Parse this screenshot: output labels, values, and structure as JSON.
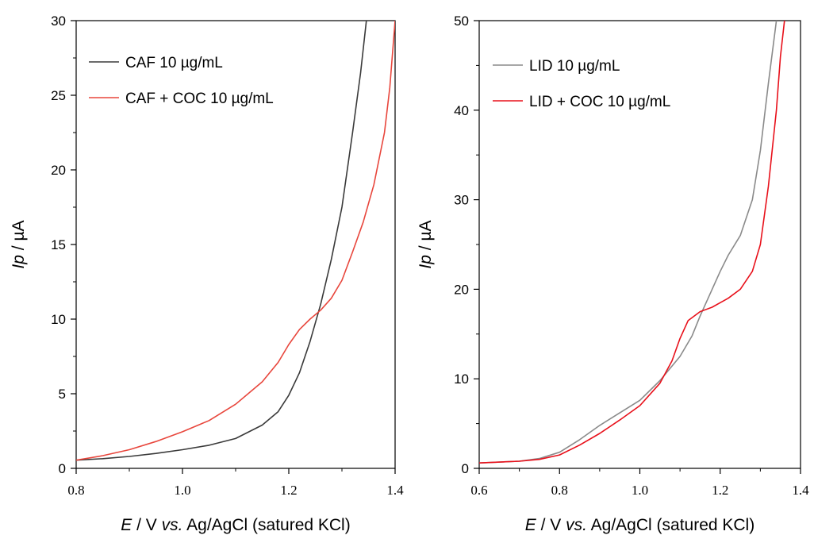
{
  "chart_data": [
    {
      "type": "line",
      "xlabel": "E / V vs. Ag/AgCl (satured KCl)",
      "ylabel": "Ip / µA",
      "xlim": [
        0.8,
        1.4
      ],
      "ylim": [
        0,
        30
      ],
      "xticks": [
        0.8,
        1.0,
        1.2,
        1.4
      ],
      "xtick_labels": [
        "0.8",
        "1.0",
        "1.2",
        "1.4"
      ],
      "yticks": [
        0,
        5,
        10,
        15,
        20,
        25,
        30
      ],
      "ytick_labels": [
        "0",
        "5",
        "10",
        "15",
        "20",
        "25",
        "30"
      ],
      "legend_position": "top-left",
      "series": [
        {
          "name": "CAF 10 µg/mL",
          "color": "#3a3a3a",
          "x": [
            0.8,
            0.85,
            0.9,
            0.95,
            1.0,
            1.05,
            1.1,
            1.15,
            1.18,
            1.2,
            1.22,
            1.24,
            1.26,
            1.28,
            1.3,
            1.32,
            1.335,
            1.346
          ],
          "y": [
            0.55,
            0.65,
            0.8,
            1.0,
            1.25,
            1.55,
            2.0,
            2.9,
            3.8,
            4.9,
            6.4,
            8.5,
            11.0,
            14.0,
            17.5,
            22.5,
            26.5,
            30.0
          ]
        },
        {
          "name": "CAF + COC 10 µg/mL",
          "color": "#e8463c",
          "x": [
            0.8,
            0.85,
            0.9,
            0.95,
            1.0,
            1.05,
            1.1,
            1.15,
            1.18,
            1.2,
            1.22,
            1.24,
            1.26,
            1.28,
            1.3,
            1.32,
            1.34,
            1.36,
            1.38,
            1.39,
            1.4
          ],
          "y": [
            0.55,
            0.85,
            1.25,
            1.8,
            2.45,
            3.2,
            4.3,
            5.8,
            7.1,
            8.3,
            9.3,
            10.0,
            10.6,
            11.4,
            12.6,
            14.5,
            16.5,
            19.0,
            22.5,
            25.5,
            30.0
          ]
        }
      ]
    },
    {
      "type": "line",
      "xlabel": "E / V vs. Ag/AgCl (satured KCl)",
      "ylabel": "Ip / µA",
      "xlim": [
        0.6,
        1.4
      ],
      "ylim": [
        0,
        50
      ],
      "xticks": [
        0.6,
        0.8,
        1.0,
        1.2,
        1.4
      ],
      "xtick_labels": [
        "0.6",
        "0.8",
        "1.0",
        "1.2",
        "1.4"
      ],
      "yticks": [
        0,
        10,
        20,
        30,
        40,
        50
      ],
      "ytick_labels": [
        "0",
        "10",
        "20",
        "30",
        "40",
        "50"
      ],
      "legend_position": "top-left",
      "series": [
        {
          "name": "LID 10 µg/mL",
          "color": "#8a8a8a",
          "x": [
            0.6,
            0.7,
            0.75,
            0.8,
            0.85,
            0.9,
            0.95,
            1.0,
            1.05,
            1.1,
            1.13,
            1.15,
            1.18,
            1.2,
            1.22,
            1.25,
            1.28,
            1.3,
            1.32,
            1.34
          ],
          "y": [
            0.6,
            0.8,
            1.1,
            1.8,
            3.2,
            4.8,
            6.2,
            7.6,
            9.8,
            12.5,
            14.8,
            17.0,
            20.0,
            22.0,
            23.8,
            26.0,
            30.0,
            35.5,
            43.0,
            50.0
          ]
        },
        {
          "name": "LID + COC 10 µg/mL",
          "color": "#e8101a",
          "x": [
            0.6,
            0.7,
            0.75,
            0.8,
            0.85,
            0.9,
            0.95,
            1.0,
            1.05,
            1.08,
            1.1,
            1.12,
            1.15,
            1.18,
            1.2,
            1.22,
            1.25,
            1.28,
            1.3,
            1.32,
            1.34,
            1.35,
            1.36
          ],
          "y": [
            0.6,
            0.8,
            1.0,
            1.5,
            2.6,
            3.9,
            5.4,
            7.0,
            9.5,
            12.0,
            14.5,
            16.5,
            17.5,
            18.0,
            18.5,
            19.0,
            20.0,
            22.0,
            25.0,
            31.5,
            40.0,
            46.0,
            50.0
          ]
        }
      ]
    }
  ]
}
